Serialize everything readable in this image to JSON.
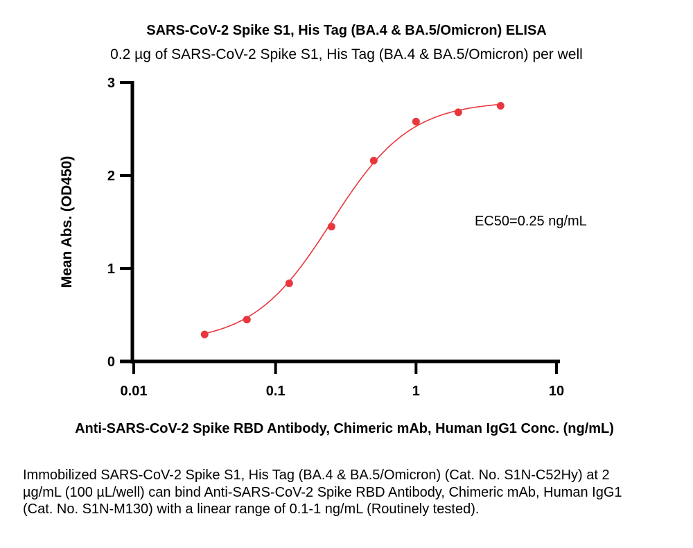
{
  "chart_data": {
    "type": "scatter",
    "title": "SARS-CoV-2 Spike S1, His Tag (BA.4 & BA.5/Omicron) ELISA",
    "subtitle": "0.2 µg of SARS-CoV-2 Spike S1, His Tag (BA.4 & BA.5/Omicron) per well",
    "xlabel": "Anti-SARS-CoV-2 Spike RBD Antibody, Chimeric mAb, Human IgG1 Conc. (ng/mL)",
    "ylabel": "Mean Abs. (OD450)",
    "xscale": "log",
    "xlim": [
      0.01,
      10
    ],
    "ylim": [
      0,
      3
    ],
    "xticks": [
      "0.01",
      "0.1",
      "1",
      "10"
    ],
    "xtick_values": [
      0.01,
      0.1,
      1,
      10
    ],
    "yticks": [
      "0",
      "1",
      "2",
      "3"
    ],
    "ytick_values": [
      0,
      1,
      2,
      3
    ],
    "grid": false,
    "series": [
      {
        "name": "OD450",
        "color": "#e8383d",
        "x": [
          0.03125,
          0.0625,
          0.125,
          0.25,
          0.5,
          1,
          2,
          4
        ],
        "y": [
          0.29,
          0.45,
          0.84,
          1.45,
          2.16,
          2.58,
          2.68,
          2.75
        ]
      }
    ],
    "fit": {
      "type": "4PL",
      "bottom": 0.2,
      "top": 2.8,
      "ec50": 0.25,
      "hill": 1.55
    },
    "annotation": "EC50=0.25 ng/mL"
  },
  "caption": "Immobilized SARS-CoV-2 Spike S1, His Tag (BA.4 & BA.5/Omicron) (Cat. No. S1N-C52Hy) at 2 µg/mL (100 µL/well) can bind Anti-SARS-CoV-2 Spike RBD Antibody, Chimeric mAb, Human IgG1 (Cat. No. S1N-M130) with a linear range of 0.1-1 ng/mL (Routinely tested)."
}
